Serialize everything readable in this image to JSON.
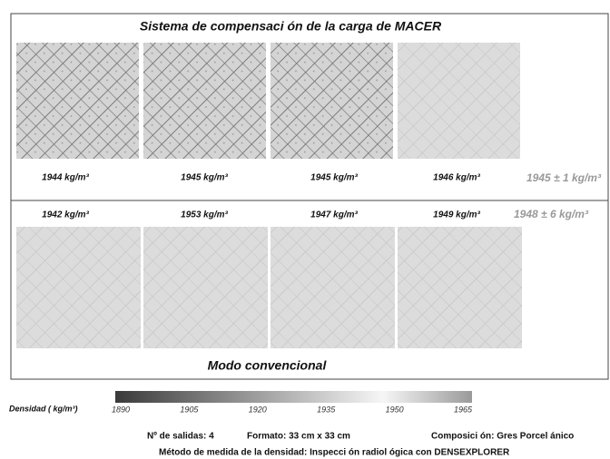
{
  "title": "Sistema de compensaci ón de la carga de MACER",
  "top_row": {
    "labels": [
      "1944 kg/m³",
      "1945 kg/m³",
      "1945 kg/m³",
      "1946 kg/m³"
    ],
    "summary": "1945 ± 1 kg/m³"
  },
  "bottom_row": {
    "labels": [
      "1942 kg/m³",
      "1953 kg/m³",
      "1947 kg/m³",
      "1949 kg/m³"
    ],
    "summary": "1948 ± 6 kg/m³"
  },
  "bottom_title": "Modo convencional",
  "colorbar": {
    "label": "Densidad ( kg/m³)",
    "ticks": [
      1890,
      1905,
      1920,
      1935,
      1950,
      1965
    ]
  },
  "footer": {
    "outputs": "Nº de salidas: 4",
    "format": "Formato: 33 cm x 33 cm",
    "composition": "Composici ón: Gres  Porcel ánico",
    "method": "Método de medida de la densidad: Inspecci    ón radiol ógica con DENSEXPLORER"
  }
}
